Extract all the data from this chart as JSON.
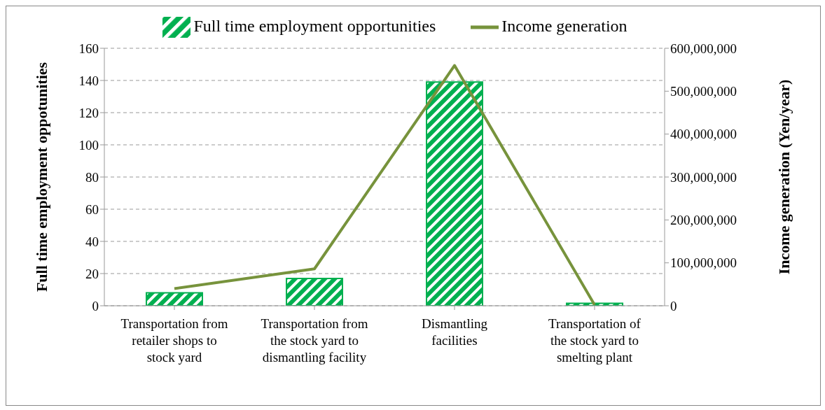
{
  "chart_data": {
    "type": "bar",
    "categories": [
      "Transportation from retailer shops to stock yard",
      "Transportation from the stock yard to dismantling facility",
      "Dismantling facilities",
      "Transportation of the stock yard to smelting plant"
    ],
    "series": [
      {
        "name": "Full time employment opportunities",
        "color": "#00b050",
        "values": [
          8,
          17,
          139,
          1.5
        ]
      },
      {
        "name": "Income generation",
        "type": "line",
        "axis": "y2",
        "color": "#77933c",
        "values": [
          40000000,
          86000000,
          560000000,
          2000000
        ]
      }
    ],
    "ylabel": "Full time employment oppotunities",
    "y2label": "Income generation (Yen/year)",
    "ylim": [
      0,
      160
    ],
    "yticks": [
      0,
      20,
      40,
      60,
      80,
      100,
      120,
      140,
      160
    ],
    "y2lim": [
      0,
      600000000
    ],
    "y2ticks": [
      0,
      {
        "value": 100000000,
        "label": "100,000,000"
      },
      {
        "value": 200000000,
        "label": "200,000,000"
      },
      {
        "value": 300000000,
        "label": "300,000,000"
      },
      {
        "value": 400000000,
        "label": "400,000,000"
      },
      {
        "value": 500000000,
        "label": "500,000,000"
      },
      {
        "value": 600000000,
        "label": "600,000,000"
      }
    ],
    "grid": "y",
    "legend": "top",
    "marker": "none",
    "line_style": "solid"
  }
}
